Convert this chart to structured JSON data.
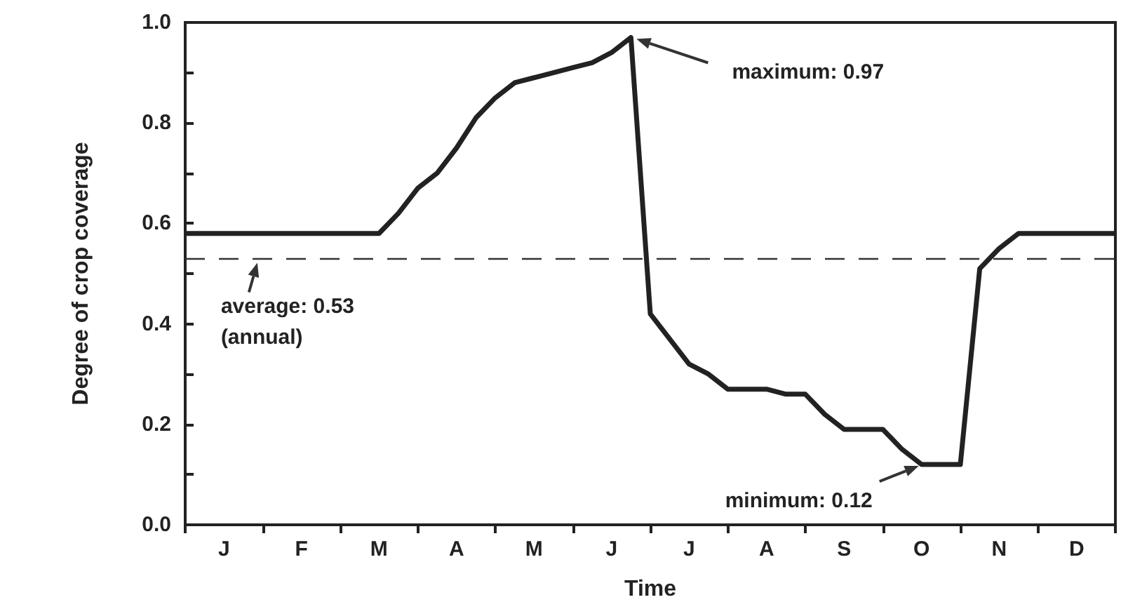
{
  "chart_data": {
    "type": "line",
    "xlabel": "Time",
    "ylabel": "Degree of crop coverage",
    "categories": [
      null,
      null,
      "J",
      null,
      null,
      null,
      "F",
      null,
      null,
      null,
      "M",
      null,
      null,
      null,
      "A",
      null,
      null,
      null,
      "M",
      null,
      null,
      null,
      "J",
      null,
      null,
      null,
      "J",
      null,
      null,
      null,
      "A",
      null,
      null,
      null,
      "S",
      null,
      null,
      null,
      "O",
      null,
      null,
      null,
      "N",
      null,
      null,
      null,
      "D",
      null,
      null
    ],
    "series": [
      {
        "color": "#222222",
        "values": [
          0.58,
          0.58,
          0.58,
          0.58,
          0.58,
          0.58,
          0.58,
          0.58,
          0.58,
          0.58,
          0.58,
          0.62,
          0.67,
          0.7,
          0.75,
          0.81,
          0.85,
          0.88,
          0.89,
          0.9,
          0.91,
          0.92,
          0.94,
          0.97,
          0.42,
          0.37,
          0.32,
          0.3,
          0.27,
          0.27,
          0.27,
          0.26,
          0.26,
          0.22,
          0.19,
          0.19,
          0.19,
          0.15,
          0.12,
          0.12,
          0.12,
          0.51,
          0.55,
          0.58,
          0.58,
          0.58,
          0.58,
          0.58,
          0.58
        ]
      }
    ],
    "ylim": [
      0,
      1
    ],
    "yticks": [
      {
        "value": 0,
        "label": "0.0"
      },
      {
        "value": 0.1,
        "label": null
      },
      {
        "value": 0.2,
        "label": "0.2"
      },
      {
        "value": 0.3,
        "label": null
      },
      {
        "value": 0.4,
        "label": "0.4"
      },
      {
        "value": 0.5,
        "label": null
      },
      {
        "value": 0.6,
        "label": "0.6"
      },
      {
        "value": 0.7,
        "label": null
      },
      {
        "value": 0.8,
        "label": "0.8"
      },
      {
        "value": 0.9,
        "label": null
      },
      {
        "value": 1,
        "label": "1.0"
      }
    ],
    "ref_lines": [
      {
        "axis": "y",
        "value": 0.53,
        "label": "average: 0.53\n(annual)",
        "line_style": "dashed",
        "color": "#333333"
      }
    ],
    "annotations": [
      "maximum: 0.97",
      "minimum: 0.12"
    ],
    "grid": false,
    "marker": "none",
    "line_style": "solid"
  }
}
